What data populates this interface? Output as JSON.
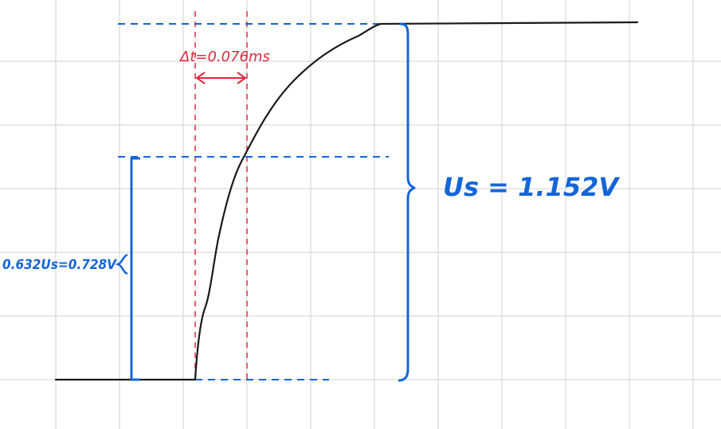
{
  "annotations": {
    "delta_t": "Δt=0.076ms",
    "us_label": "Us = 1.152V",
    "tau_label": "0.632Us=0.728V"
  },
  "colors": {
    "curve": "#1a1a1a",
    "annotation_blue": "#1565d8",
    "annotation_red": "#e0283c",
    "grid": "#d2d2d2"
  }
}
